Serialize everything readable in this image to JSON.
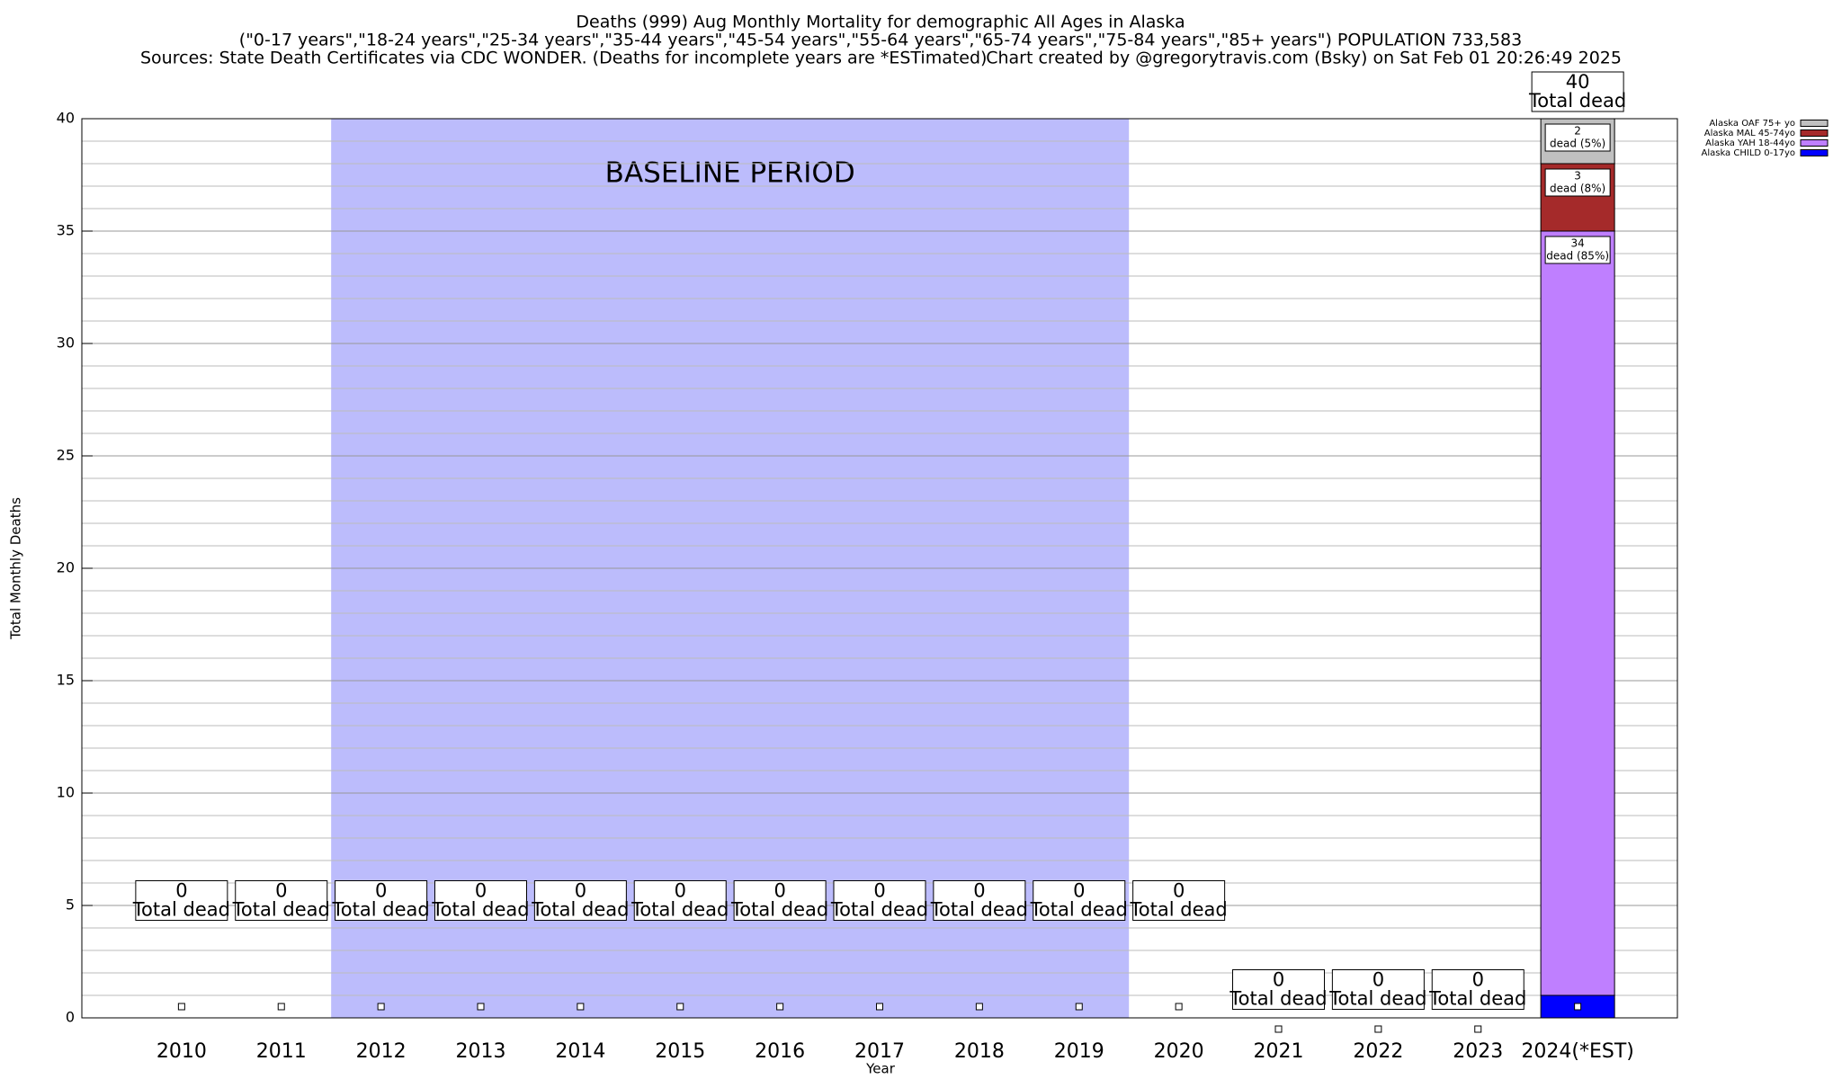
{
  "chart_data": {
    "type": "stacked_bar",
    "title": "Deaths (999) Aug Monthly Mortality for demographic All Ages in Alaska",
    "subtitle": "(\"0-17 years\",\"18-24 years\",\"25-34 years\",\"35-44 years\",\"45-54 years\",\"55-64 years\",\"65-74 years\",\"75-84 years\",\"85+ years\") POPULATION 733,583",
    "source": "Sources: State Death Certificates via CDC WONDER. (Deaths for incomplete years are *ESTimated)",
    "credit": "Chart created by @gregorytravis.com (Bsky) on Sat Feb 01 20:26:49 2025",
    "x_label": "Year",
    "y_label": "Total Monthly Deaths",
    "categories": [
      "2010",
      "2011",
      "2012",
      "2013",
      "2014",
      "2015",
      "2016",
      "2017",
      "2018",
      "2019",
      "2020",
      "2021",
      "2022",
      "2023",
      "2024(*EST)"
    ],
    "series": [
      {
        "name": "Alaska CHILD 0-17yo",
        "color": "#0000ff",
        "values": [
          0,
          0,
          0,
          0,
          0,
          0,
          0,
          0,
          0,
          0,
          0,
          0,
          0,
          0,
          1
        ]
      },
      {
        "name": "Alaska YAH 18-44yo",
        "color": "#bf7fff",
        "values": [
          0,
          0,
          0,
          0,
          0,
          0,
          0,
          0,
          0,
          0,
          0,
          0,
          0,
          0,
          34
        ],
        "share_labels": [
          null,
          null,
          null,
          null,
          null,
          null,
          null,
          null,
          null,
          null,
          null,
          null,
          null,
          null,
          "dead (85%)"
        ]
      },
      {
        "name": "Alaska MAL 45-74yo",
        "color": "#a52a2a",
        "values": [
          0,
          0,
          0,
          0,
          0,
          0,
          0,
          0,
          0,
          0,
          0,
          0,
          0,
          0,
          3
        ],
        "share_labels": [
          null,
          null,
          null,
          null,
          null,
          null,
          null,
          null,
          null,
          null,
          null,
          null,
          null,
          null,
          "dead (8%)"
        ]
      },
      {
        "name": "Alaska OAF 75+ yo",
        "color": "#c0c0c0",
        "values": [
          0,
          0,
          0,
          0,
          0,
          0,
          0,
          0,
          0,
          0,
          0,
          0,
          0,
          0,
          2
        ],
        "share_labels": [
          null,
          null,
          null,
          null,
          null,
          null,
          null,
          null,
          null,
          null,
          null,
          null,
          null,
          null,
          "dead (5%)"
        ]
      }
    ],
    "totals": [
      0,
      0,
      0,
      0,
      0,
      0,
      0,
      0,
      0,
      0,
      0,
      0,
      0,
      0,
      40
    ],
    "total_label": "Total dead",
    "point_values": [
      0.5,
      0.5,
      0.5,
      0.5,
      0.5,
      0.5,
      0.5,
      0.5,
      0.5,
      0.5,
      0.5,
      -0.5,
      -0.5,
      -0.5,
      0.5
    ],
    "baseline": {
      "label": "BASELINE PERIOD",
      "start": "2012",
      "end": "2019",
      "color": "#bcbcfc"
    },
    "ylim": [
      0,
      40
    ],
    "yticks": [
      0,
      5,
      10,
      15,
      20,
      25,
      30,
      35,
      40
    ],
    "yminor": 1,
    "grid": true,
    "legend": "top-right"
  }
}
